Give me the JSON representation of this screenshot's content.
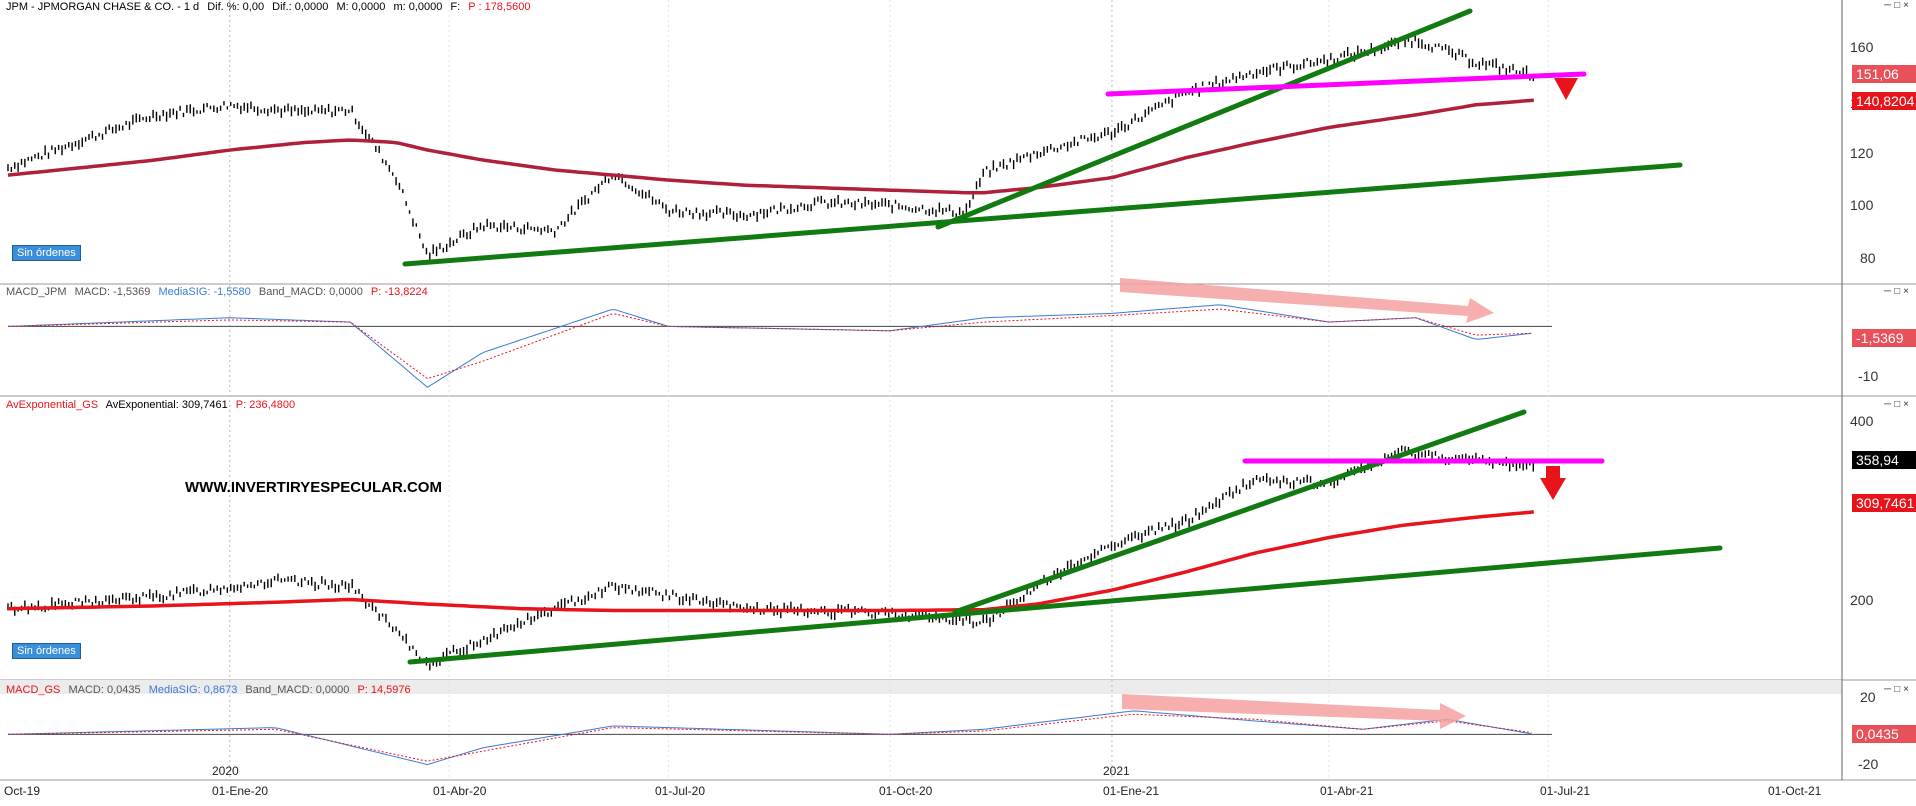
{
  "panels": {
    "price1": {
      "header": {
        "name": "JPM - JPMORGAN CHASE & CO. - 1 d",
        "dif_pct": "Dif. %: 0,00",
        "dif": "Dif.: 0,0000",
        "M": "M: 0,0000",
        "m": "m: 0,0000",
        "F": "F:",
        "P": "P : 178,5600"
      },
      "label": "Sin órdenes",
      "y_ticks": [
        "160",
        "140",
        "120",
        "100",
        "80"
      ],
      "last_price": "151,06",
      "ma_value": "140,8204",
      "ylim": [
        68,
        176
      ]
    },
    "macd1": {
      "header": {
        "name": "MACD_JPM",
        "macd": "MACD: -1,5369",
        "signal": "MediaSIG: -1,5580",
        "band": "Band_MACD: 0,0000",
        "P": "P: -13,8224"
      },
      "y_ticks": [
        "-10"
      ],
      "last_value": "-1,5369"
    },
    "price2": {
      "header": {
        "name": "AvExponential_GS",
        "value": "AvExponential: 309,7461",
        "P": "P: 236,4800"
      },
      "label": "Sin órdenes",
      "watermark": "WWW.INVERTIRYESPECULAR.COM",
      "y_ticks": [
        "400",
        "200"
      ],
      "last_price": "358,94",
      "ma_value": "309,7461",
      "ylim": [
        130,
        420
      ]
    },
    "macd2": {
      "header": {
        "name": "MACD_GS",
        "macd": "MACD: 0,0435",
        "signal": "MediaSIG: 0,8673",
        "band": "Band_MACD: 0,0000",
        "P": "P: 14,5976"
      },
      "y_ticks": [
        "20",
        "-20"
      ],
      "last_value": "0,0435"
    }
  },
  "x_axis": {
    "ticks": [
      "Oct-19",
      "01-Ene-20",
      "01-Abr-20",
      "01-Jul-20",
      "01-Oct-20",
      "01-Ene-21",
      "01-Abr-21",
      "01-Jul-21",
      "01-Oct-21"
    ],
    "year_labels": [
      "2020",
      "2021"
    ]
  },
  "colors": {
    "price_bars": "#000000",
    "ma_line": "#b0203a",
    "ma_line_gs": "#e8141c",
    "trendline": "#117a10",
    "support": "#ff00ff",
    "arrow": "#e8141c",
    "macd": "#3a7bd5",
    "signal": "#e8141c",
    "divergence": "#f4a0a0"
  },
  "chart_data": [
    {
      "type": "line",
      "title": "JPM - JPMORGAN CHASE & CO. - 1 d",
      "xlabel": "",
      "ylabel": "",
      "ylim": [
        68,
        176
      ],
      "x": [
        "2019-10-01",
        "2019-11-01",
        "2019-12-01",
        "2020-01-01",
        "2020-02-01",
        "2020-02-20",
        "2020-03-10",
        "2020-03-23",
        "2020-04-15",
        "2020-05-15",
        "2020-06-08",
        "2020-07-01",
        "2020-08-01",
        "2020-09-01",
        "2020-10-01",
        "2020-11-01",
        "2020-11-09",
        "2020-12-01",
        "2021-01-01",
        "2021-02-01",
        "2021-03-01",
        "2021-04-01",
        "2021-05-07",
        "2021-06-01",
        "2021-06-25"
      ],
      "series": [
        {
          "name": "JPM",
          "values": [
            114,
            125,
            135,
            139,
            136,
            137,
            110,
            79,
            91,
            89,
            112,
            97,
            95,
            100,
            99,
            96,
            112,
            120,
            128,
            144,
            152,
            157,
            165,
            156,
            151
          ]
        },
        {
          "name": "AvExponential",
          "values": [
            111,
            114,
            117,
            121,
            124,
            125,
            124,
            121,
            117,
            113,
            111,
            109,
            107,
            106,
            105,
            104,
            104,
            106,
            110,
            118,
            124,
            130,
            135,
            139,
            140.82
          ]
        }
      ]
    },
    {
      "type": "line",
      "title": "MACD_JPM",
      "x": [
        "2019-10-01",
        "2020-01-01",
        "2020-02-20",
        "2020-03-23",
        "2020-04-15",
        "2020-06-08",
        "2020-07-01",
        "2020-10-01",
        "2020-11-09",
        "2021-01-01",
        "2021-02-15",
        "2021-04-01",
        "2021-05-07",
        "2021-06-01",
        "2021-06-25"
      ],
      "series": [
        {
          "name": "MACD",
          "values": [
            0,
            2,
            1,
            -14,
            -6,
            4,
            0,
            -1,
            2,
            3,
            5,
            1,
            2,
            -3,
            -1.5369
          ]
        },
        {
          "name": "MediaSIG",
          "values": [
            0,
            1.5,
            1,
            -12,
            -8,
            3,
            0,
            -1,
            1,
            2.5,
            4,
            1,
            2,
            -2,
            -1.558
          ]
        }
      ]
    },
    {
      "type": "line",
      "title": "AvExponential_GS",
      "ylim": [
        130,
        420
      ],
      "x": [
        "2019-10-01",
        "2019-12-01",
        "2020-01-20",
        "2020-02-20",
        "2020-03-23",
        "2020-05-01",
        "2020-06-08",
        "2020-08-01",
        "2020-10-01",
        "2020-11-09",
        "2020-12-01",
        "2021-01-01",
        "2021-02-01",
        "2021-03-01",
        "2021-04-01",
        "2021-05-01",
        "2021-06-01",
        "2021-06-25"
      ],
      "series": [
        {
          "name": "GS",
          "values": [
            205,
            218,
            235,
            230,
            145,
            190,
            230,
            205,
            200,
            190,
            230,
            275,
            300,
            345,
            340,
            375,
            365,
            358.94
          ]
        },
        {
          "name": "AvExponential",
          "values": [
            205,
            208,
            212,
            215,
            210,
            205,
            203,
            203,
            203,
            204,
            210,
            225,
            245,
            265,
            282,
            295,
            304,
            309.7461
          ]
        }
      ]
    },
    {
      "type": "line",
      "title": "MACD_GS",
      "x": [
        "2019-10-01",
        "2020-01-20",
        "2020-03-23",
        "2020-04-15",
        "2020-06-08",
        "2020-10-01",
        "2020-11-09",
        "2021-01-10",
        "2021-03-01",
        "2021-04-15",
        "2021-05-20",
        "2021-06-25"
      ],
      "series": [
        {
          "name": "MACD",
          "values": [
            0,
            4,
            -18,
            -8,
            5,
            0,
            3,
            14,
            8,
            3,
            9,
            0.0435
          ]
        },
        {
          "name": "MediaSIG",
          "values": [
            0,
            3,
            -16,
            -10,
            4,
            0,
            2,
            12,
            9,
            3,
            8,
            0.8673
          ]
        }
      ]
    }
  ]
}
